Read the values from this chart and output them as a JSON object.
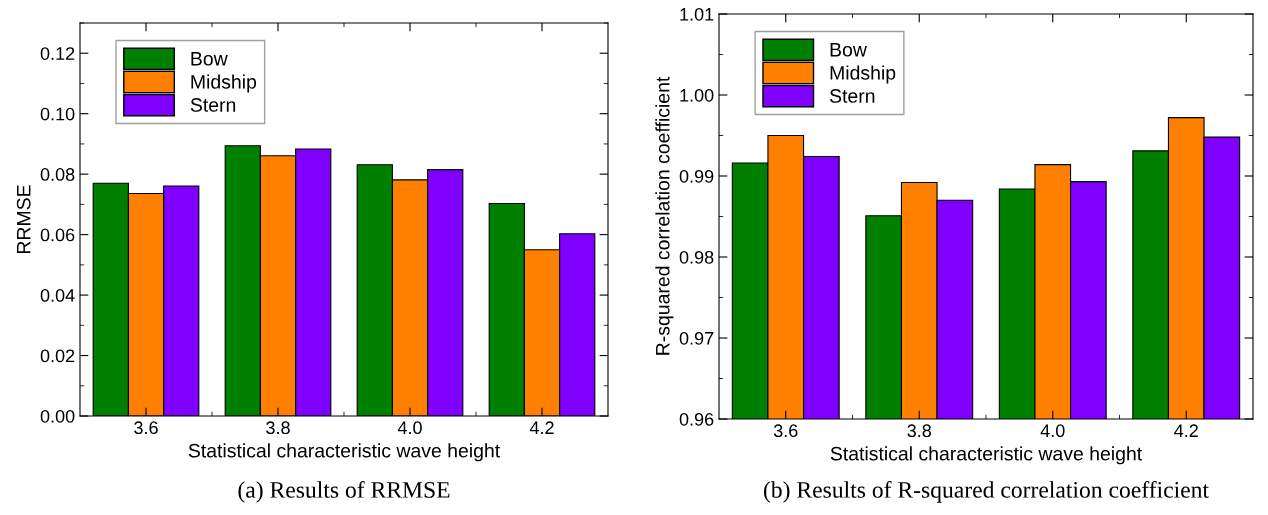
{
  "chart_data": [
    {
      "type": "bar",
      "xlabel": "Statistical characteristic wave height",
      "ylabel": "RRMSE",
      "categories": [
        "3.6",
        "3.8",
        "4.0",
        "4.2"
      ],
      "series": [
        {
          "name": "Bow",
          "color": "#008000",
          "values": [
            0.077,
            0.0894,
            0.0831,
            0.0703
          ]
        },
        {
          "name": "Midship",
          "color": "#ff8000",
          "values": [
            0.0736,
            0.0861,
            0.0781,
            0.055
          ]
        },
        {
          "name": "Stern",
          "color": "#8000ff",
          "values": [
            0.0761,
            0.0883,
            0.0815,
            0.0603
          ]
        }
      ],
      "ylim": [
        0,
        0.13
      ],
      "yticks": [
        {
          "value": 0,
          "label": "0.00"
        },
        {
          "value": 0.02,
          "label": "0.02"
        },
        {
          "value": 0.04,
          "label": "0.04"
        },
        {
          "value": 0.06,
          "label": "0.06"
        },
        {
          "value": 0.08,
          "label": "0.08"
        },
        {
          "value": 0.1,
          "label": "0.10"
        },
        {
          "value": 0.12,
          "label": "0.12"
        }
      ],
      "grid": false,
      "legend": "top left",
      "annotations": [
        "(a) Results of RRMSE"
      ]
    },
    {
      "type": "bar",
      "xlabel": "Statistical characteristic wave height",
      "ylabel": "R-squared correlation coefficient",
      "categories": [
        "3.6",
        "3.8",
        "4.0",
        "4.2"
      ],
      "series": [
        {
          "name": "Bow",
          "color": "#008000",
          "values": [
            0.9916,
            0.9851,
            0.9884,
            0.9931
          ]
        },
        {
          "name": "Midship",
          "color": "#ff8000",
          "values": [
            0.995,
            0.9892,
            0.9914,
            0.9972
          ]
        },
        {
          "name": "Stern",
          "color": "#8000ff",
          "values": [
            0.9924,
            0.987,
            0.9893,
            0.9948
          ]
        }
      ],
      "ylim": [
        0.96,
        1.01
      ],
      "yticks": [
        {
          "value": 0.96,
          "label": "0.96"
        },
        {
          "value": 0.97,
          "label": "0.97"
        },
        {
          "value": 0.98,
          "label": "0.98"
        },
        {
          "value": 0.99,
          "label": "0.99"
        },
        {
          "value": 1.0,
          "label": "1.00"
        },
        {
          "value": 1.01,
          "label": "1.01"
        }
      ],
      "grid": false,
      "legend": "top left",
      "annotations": [
        "(b) Results of R-squared correlation coefficient"
      ]
    }
  ]
}
